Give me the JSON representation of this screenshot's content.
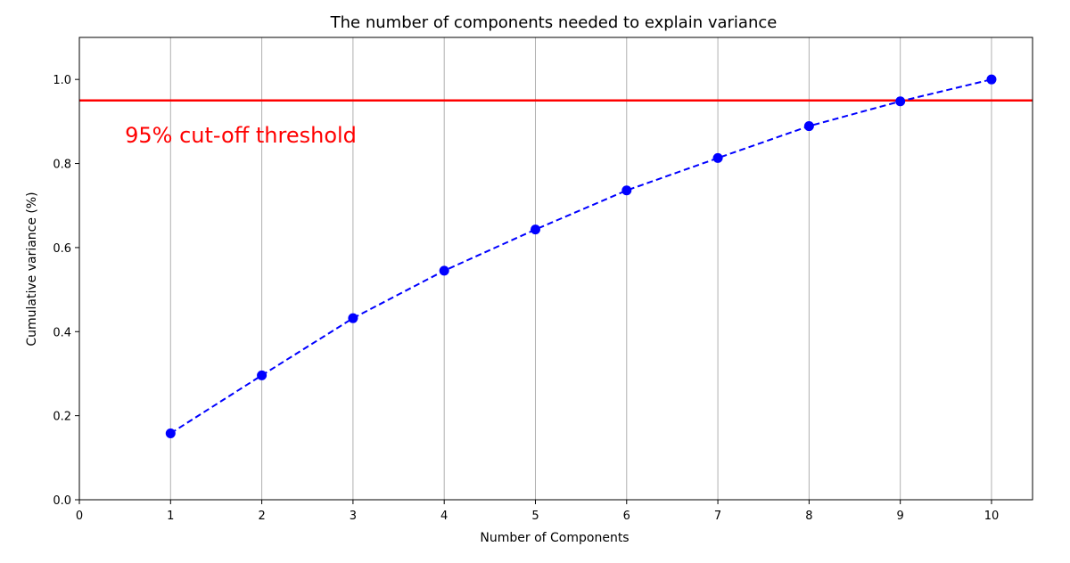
{
  "chart_data": {
    "type": "line",
    "title": "The number of components needed to explain variance",
    "xlabel": "Number of Components",
    "ylabel": "Cumulative variance (%)",
    "xlim": [
      0,
      10.45
    ],
    "ylim": [
      0,
      1.1
    ],
    "xticks": [
      0,
      1,
      2,
      3,
      4,
      5,
      6,
      7,
      8,
      9,
      10
    ],
    "yticks": [
      0.0,
      0.2,
      0.4,
      0.6,
      0.8,
      1.0
    ],
    "ytick_labels": [
      "0.0",
      "0.2",
      "0.4",
      "0.6",
      "0.8",
      "1.0"
    ],
    "grid": "vertical",
    "x": [
      1,
      2,
      3,
      4,
      5,
      6,
      7,
      8,
      9,
      10
    ],
    "series": [
      {
        "values": [
          0.158,
          0.296,
          0.432,
          0.545,
          0.643,
          0.736,
          0.813,
          0.889,
          0.948,
          1.0
        ],
        "color": "#0000ff",
        "style": "dashed",
        "marker": "circle"
      }
    ],
    "threshold": {
      "value": 0.95,
      "color": "#ff0000"
    },
    "annotation": {
      "text": "95% cut-off threshold",
      "x": 0.5,
      "y": 0.85,
      "color": "#ff0000"
    }
  }
}
